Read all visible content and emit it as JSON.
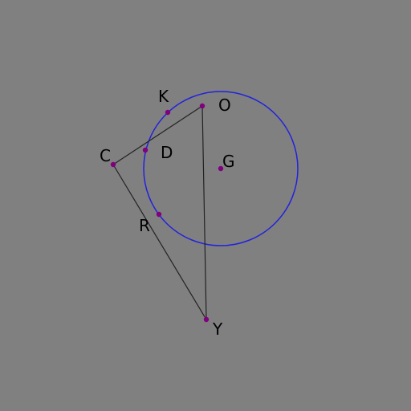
{
  "diagram": {
    "circle": {
      "center_label": "G",
      "stroke_color": "#2222dd"
    },
    "segments": [
      {
        "from": "C",
        "to": "O"
      },
      {
        "from": "O",
        "to": "Y"
      },
      {
        "from": "Y",
        "to": "C"
      }
    ],
    "segment_color": "#222222",
    "point_color": "#800080",
    "labels": {
      "K": "K",
      "O": "O",
      "C": "C",
      "D": "D",
      "G": "G",
      "R": "R",
      "Y": "Y"
    }
  }
}
